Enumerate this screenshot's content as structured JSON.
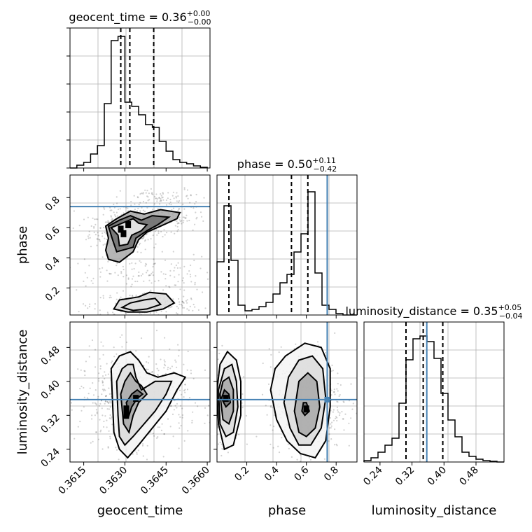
{
  "chart_data": {
    "type": "corner",
    "parameters": [
      "geocent_time",
      "phase",
      "luminosity_distance"
    ],
    "truth_color": "#4682b4",
    "truths": {
      "phase": 0.74,
      "luminosity_distance": 0.357
    },
    "diagonal": [
      {
        "param": "geocent_time",
        "title_main": "geocent_time = 0.36",
        "title_sup": "+0.00",
        "title_sub": "−0.00",
        "xlim": [
          0.361,
          0.3661
        ],
        "ylim": [
          0,
          1.0
        ],
        "quantiles": [
          0.36285,
          0.36318,
          0.36405
        ],
        "bins": [
          0.361,
          0.36125,
          0.3615,
          0.36175,
          0.362,
          0.36225,
          0.3625,
          0.36275,
          0.363,
          0.36325,
          0.3635,
          0.36375,
          0.364,
          0.36425,
          0.3645,
          0.36475,
          0.365,
          0.36525,
          0.3655,
          0.36575,
          0.366
        ],
        "counts": [
          0.0,
          0.02,
          0.04,
          0.1,
          0.16,
          0.46,
          0.91,
          0.94,
          0.47,
          0.44,
          0.38,
          0.31,
          0.29,
          0.19,
          0.12,
          0.06,
          0.04,
          0.03,
          0.015,
          0.005
        ]
      },
      {
        "param": "phase",
        "title_main": "phase = 0.50",
        "title_sup": "+0.11",
        "title_sub": "−0.42",
        "xlim": [
          0.0,
          0.94
        ],
        "ylim": [
          0,
          1.0
        ],
        "quantiles": [
          0.08,
          0.5,
          0.61
        ],
        "bins": [
          0.0,
          0.047,
          0.094,
          0.141,
          0.188,
          0.235,
          0.282,
          0.329,
          0.376,
          0.423,
          0.47,
          0.517,
          0.564,
          0.611,
          0.658,
          0.705,
          0.752,
          0.799,
          0.846,
          0.893,
          0.94
        ],
        "counts": [
          0.38,
          0.78,
          0.39,
          0.07,
          0.03,
          0.04,
          0.06,
          0.09,
          0.15,
          0.23,
          0.29,
          0.45,
          0.58,
          0.88,
          0.3,
          0.07,
          0.04,
          0.01,
          0.0,
          0.0
        ]
      },
      {
        "param": "luminosity_distance",
        "title_main": "luminosity_distance = 0.35",
        "title_sup": "+0.05",
        "title_sub": "−0.04",
        "xlim": [
          0.2,
          0.55
        ],
        "ylim": [
          0,
          1.0
        ],
        "quantiles": [
          0.305,
          0.348,
          0.397
        ],
        "bins": [
          0.2,
          0.2175,
          0.235,
          0.2525,
          0.27,
          0.2875,
          0.305,
          0.3225,
          0.34,
          0.3575,
          0.375,
          0.3925,
          0.41,
          0.4275,
          0.445,
          0.4625,
          0.48,
          0.4975,
          0.515,
          0.5325,
          0.55
        ],
        "counts": [
          0.01,
          0.03,
          0.07,
          0.12,
          0.17,
          0.42,
          0.73,
          0.88,
          0.9,
          0.86,
          0.74,
          0.49,
          0.3,
          0.18,
          0.07,
          0.04,
          0.02,
          0.01,
          0.005,
          0.0
        ]
      }
    ],
    "panels_2d": [
      {
        "x": "geocent_time",
        "y": "phase",
        "xlim": [
          0.361,
          0.3661
        ],
        "ylim": [
          0.02,
          0.95
        ],
        "truth_y": 0.74,
        "contours": [
          [
            [
              0.3625,
              0.6
            ],
            [
              0.36275,
              0.55
            ],
            [
              0.3628,
              0.48
            ],
            [
              0.3631,
              0.49
            ],
            [
              0.36325,
              0.55
            ],
            [
              0.3636,
              0.58
            ],
            [
              0.3638,
              0.62
            ],
            [
              0.3635,
              0.63
            ],
            [
              0.3633,
              0.66
            ],
            [
              0.3629,
              0.63
            ]
          ],
          [
            [
              0.3624,
              0.61
            ],
            [
              0.36255,
              0.52
            ],
            [
              0.3627,
              0.44
            ],
            [
              0.3633,
              0.47
            ],
            [
              0.3634,
              0.53
            ],
            [
              0.3638,
              0.58
            ],
            [
              0.3642,
              0.62
            ],
            [
              0.3646,
              0.67
            ],
            [
              0.364,
              0.68
            ],
            [
              0.3636,
              0.65
            ],
            [
              0.3632,
              0.68
            ],
            [
              0.3628,
              0.65
            ]
          ],
          [
            [
              0.3623,
              0.61
            ],
            [
              0.3624,
              0.53
            ],
            [
              0.3623,
              0.45
            ],
            [
              0.3624,
              0.39
            ],
            [
              0.3628,
              0.37
            ],
            [
              0.3633,
              0.44
            ],
            [
              0.3635,
              0.52
            ],
            [
              0.3638,
              0.57
            ],
            [
              0.3643,
              0.61
            ],
            [
              0.3649,
              0.66
            ],
            [
              0.365,
              0.7
            ],
            [
              0.3643,
              0.72
            ],
            [
              0.3637,
              0.69
            ],
            [
              0.3632,
              0.71
            ],
            [
              0.3627,
              0.66
            ]
          ],
          [
            [
              0.3626,
              0.06
            ],
            [
              0.3628,
              0.12
            ],
            [
              0.3635,
              0.14
            ],
            [
              0.3639,
              0.17
            ],
            [
              0.3645,
              0.16
            ],
            [
              0.3648,
              0.1
            ],
            [
              0.3644,
              0.06
            ],
            [
              0.3638,
              0.04
            ],
            [
              0.3631,
              0.04
            ]
          ],
          [
            [
              0.3629,
              0.07
            ],
            [
              0.3632,
              0.1
            ],
            [
              0.3637,
              0.12
            ],
            [
              0.3641,
              0.13
            ],
            [
              0.3643,
              0.09
            ],
            [
              0.3638,
              0.06
            ],
            [
              0.3633,
              0.05
            ]
          ]
        ],
        "dark_cells": [
          [
            0.36285,
            0.59
          ],
          [
            0.36295,
            0.56
          ],
          [
            0.36312,
            0.62
          ]
        ]
      },
      {
        "x": "geocent_time",
        "y": "luminosity_distance",
        "xlim": [
          0.361,
          0.3661
        ],
        "ylim": [
          0.21,
          0.54
        ],
        "truth_y": 0.357,
        "contours": [
          [
            [
              0.36305,
              0.35
            ],
            [
              0.36315,
              0.32
            ],
            [
              0.36325,
              0.34
            ],
            [
              0.36345,
              0.36
            ],
            [
              0.36365,
              0.37
            ],
            [
              0.36345,
              0.38
            ],
            [
              0.36325,
              0.37
            ]
          ],
          [
            [
              0.36285,
              0.37
            ],
            [
              0.36295,
              0.3
            ],
            [
              0.36315,
              0.28
            ],
            [
              0.3633,
              0.32
            ],
            [
              0.3635,
              0.35
            ],
            [
              0.3638,
              0.37
            ],
            [
              0.3636,
              0.39
            ],
            [
              0.3634,
              0.4
            ],
            [
              0.3632,
              0.42
            ],
            [
              0.363,
              0.4
            ]
          ],
          [
            [
              0.3627,
              0.4
            ],
            [
              0.36275,
              0.32
            ],
            [
              0.3628,
              0.27
            ],
            [
              0.363,
              0.25
            ],
            [
              0.3633,
              0.27
            ],
            [
              0.3637,
              0.3
            ],
            [
              0.3641,
              0.33
            ],
            [
              0.3645,
              0.37
            ],
            [
              0.3647,
              0.4
            ],
            [
              0.3641,
              0.4
            ],
            [
              0.3636,
              0.38
            ],
            [
              0.3634,
              0.41
            ],
            [
              0.3633,
              0.44
            ],
            [
              0.3631,
              0.44
            ],
            [
              0.3629,
              0.43
            ]
          ],
          [
            [
              0.3625,
              0.43
            ],
            [
              0.36255,
              0.35
            ],
            [
              0.3626,
              0.28
            ],
            [
              0.3628,
              0.24
            ],
            [
              0.3631,
              0.22
            ],
            [
              0.3635,
              0.25
            ],
            [
              0.364,
              0.29
            ],
            [
              0.3645,
              0.33
            ],
            [
              0.3649,
              0.38
            ],
            [
              0.3652,
              0.41
            ],
            [
              0.3648,
              0.42
            ],
            [
              0.3642,
              0.41
            ],
            [
              0.3638,
              0.42
            ],
            [
              0.3635,
              0.45
            ],
            [
              0.3632,
              0.47
            ],
            [
              0.3628,
              0.46
            ]
          ]
        ],
        "dark_cells": [
          [
            0.36305,
            0.335
          ],
          [
            0.36305,
            0.32
          ],
          [
            0.3634,
            0.36
          ]
        ]
      },
      {
        "x": "phase",
        "y": "luminosity_distance",
        "xlim": [
          0.0,
          0.94
        ],
        "ylim": [
          0.21,
          0.54
        ],
        "truth_x": 0.74,
        "truth_y": 0.357,
        "contours": [
          [
            [
              0.03,
              0.36
            ],
            [
              0.06,
              0.34
            ],
            [
              0.09,
              0.35
            ],
            [
              0.08,
              0.37
            ],
            [
              0.05,
              0.38
            ]
          ],
          [
            [
              0.02,
              0.37
            ],
            [
              0.04,
              0.31
            ],
            [
              0.08,
              0.3
            ],
            [
              0.11,
              0.33
            ],
            [
              0.11,
              0.38
            ],
            [
              0.08,
              0.41
            ],
            [
              0.04,
              0.4
            ]
          ],
          [
            [
              0.01,
              0.38
            ],
            [
              0.02,
              0.3
            ],
            [
              0.06,
              0.27
            ],
            [
              0.11,
              0.28
            ],
            [
              0.14,
              0.34
            ],
            [
              0.13,
              0.4
            ],
            [
              0.1,
              0.44
            ],
            [
              0.05,
              0.43
            ]
          ],
          [
            [
              0.0,
              0.38
            ],
            [
              0.01,
              0.3
            ],
            [
              0.05,
              0.24
            ],
            [
              0.11,
              0.25
            ],
            [
              0.16,
              0.32
            ],
            [
              0.16,
              0.4
            ],
            [
              0.13,
              0.45
            ],
            [
              0.07,
              0.47
            ],
            [
              0.02,
              0.44
            ]
          ],
          [
            [
              0.57,
              0.33
            ],
            [
              0.59,
              0.32
            ],
            [
              0.62,
              0.33
            ],
            [
              0.6,
              0.35
            ],
            [
              0.58,
              0.35
            ]
          ],
          [
            [
              0.52,
              0.33
            ],
            [
              0.55,
              0.28
            ],
            [
              0.6,
              0.27
            ],
            [
              0.66,
              0.29
            ],
            [
              0.69,
              0.34
            ],
            [
              0.67,
              0.4
            ],
            [
              0.61,
              0.42
            ],
            [
              0.55,
              0.4
            ]
          ],
          [
            [
              0.45,
              0.35
            ],
            [
              0.49,
              0.29
            ],
            [
              0.55,
              0.25
            ],
            [
              0.63,
              0.25
            ],
            [
              0.7,
              0.29
            ],
            [
              0.73,
              0.36
            ],
            [
              0.71,
              0.43
            ],
            [
              0.64,
              0.46
            ],
            [
              0.55,
              0.45
            ],
            [
              0.48,
              0.41
            ]
          ],
          [
            [
              0.36,
              0.38
            ],
            [
              0.4,
              0.31
            ],
            [
              0.47,
              0.26
            ],
            [
              0.56,
              0.23
            ],
            [
              0.66,
              0.22
            ],
            [
              0.73,
              0.26
            ],
            [
              0.76,
              0.34
            ],
            [
              0.76,
              0.43
            ],
            [
              0.7,
              0.48
            ],
            [
              0.59,
              0.49
            ],
            [
              0.46,
              0.46
            ],
            [
              0.39,
              0.43
            ]
          ]
        ],
        "dark_cells": [
          [
            0.06,
            0.36
          ],
          [
            0.6,
            0.335
          ]
        ]
      }
    ],
    "scatter_clouds": [
      {
        "panel": 0,
        "cx": 0.363,
        "cy": 0.58,
        "sx": 0.00065,
        "sy": 0.07,
        "n": 260
      },
      {
        "panel": 0,
        "cx": 0.364,
        "cy": 0.66,
        "sx": 0.001,
        "sy": 0.05,
        "n": 220
      },
      {
        "panel": 0,
        "cx": 0.3638,
        "cy": 0.09,
        "sx": 0.001,
        "sy": 0.04,
        "n": 230
      },
      {
        "panel": 0,
        "cx": 0.3634,
        "cy": 0.3,
        "sx": 0.0015,
        "sy": 0.06,
        "n": 140
      },
      {
        "panel": 0,
        "cx": 0.3645,
        "cy": 0.8,
        "sx": 0.0008,
        "sy": 0.03,
        "n": 70
      },
      {
        "panel": 1,
        "cx": 0.3633,
        "cy": 0.36,
        "sx": 0.001,
        "sy": 0.055,
        "n": 650
      },
      {
        "panel": 2,
        "cx": 0.06,
        "cy": 0.36,
        "sx": 0.05,
        "sy": 0.05,
        "n": 330
      },
      {
        "panel": 2,
        "cx": 0.6,
        "cy": 0.35,
        "sx": 0.12,
        "sy": 0.06,
        "n": 620
      }
    ],
    "tick_labels": {
      "geocent_time": [
        "0.3615",
        "0.3630",
        "0.3645",
        "0.3660"
      ],
      "phase": [
        "0.2",
        "0.4",
        "0.6",
        "0.8"
      ],
      "luminosity_distance": [
        "0.24",
        "0.32",
        "0.40",
        "0.48"
      ]
    },
    "tick_values": {
      "geocent_time": [
        0.3615,
        0.363,
        0.3645,
        0.366
      ],
      "phase": [
        0.2,
        0.4,
        0.6,
        0.8
      ],
      "luminosity_distance": [
        0.24,
        0.32,
        0.4,
        0.48
      ]
    },
    "axis_labels": {
      "x": [
        "geocent_time",
        "phase",
        "luminosity_distance"
      ],
      "y": [
        "phase",
        "luminosity_distance"
      ]
    }
  }
}
